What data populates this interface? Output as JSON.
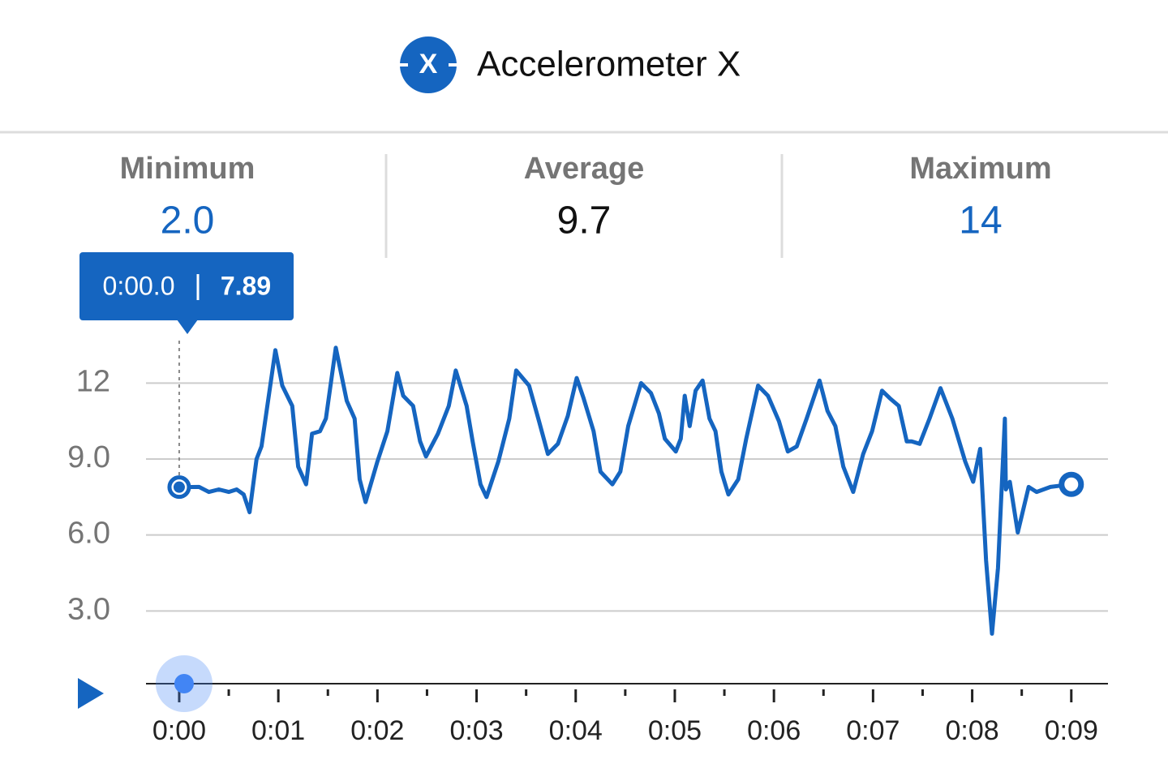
{
  "header": {
    "icon_label": "X",
    "title": "Accelerometer X"
  },
  "stats": [
    {
      "label": "Minimum",
      "value": "2.0"
    },
    {
      "label": "Average",
      "value": "9.7"
    },
    {
      "label": "Maximum",
      "value": "14"
    }
  ],
  "tooltip": {
    "time": "0:00.0",
    "value": "7.89"
  },
  "chart_data": {
    "type": "line",
    "color": "#1565c0",
    "x": [
      0,
      0.2,
      0.3,
      0.4,
      0.5,
      0.58,
      0.65,
      0.71,
      0.78,
      0.83,
      0.97,
      1.04,
      1.14,
      1.2,
      1.28,
      1.34,
      1.42,
      1.48,
      1.58,
      1.69,
      1.77,
      1.82,
      1.88,
      2.0,
      2.1,
      2.2,
      2.26,
      2.36,
      2.43,
      2.49,
      2.61,
      2.72,
      2.79,
      2.9,
      2.96,
      3.04,
      3.1,
      3.22,
      3.33,
      3.4,
      3.53,
      3.63,
      3.72,
      3.82,
      3.92,
      4.01,
      4.08,
      4.18,
      4.25,
      4.37,
      4.45,
      4.53,
      4.66,
      4.76,
      4.84,
      4.9,
      5.01,
      5.06,
      5.1,
      5.15,
      5.21,
      5.28,
      5.35,
      5.41,
      5.47,
      5.54,
      5.64,
      5.72,
      5.84,
      5.94,
      6.05,
      6.14,
      6.23,
      6.33,
      6.46,
      6.54,
      6.62,
      6.7,
      6.8,
      6.9,
      6.99,
      7.09,
      7.17,
      7.26,
      7.34,
      7.39,
      7.47,
      7.57,
      7.68,
      7.8,
      7.93,
      8.01,
      8.08,
      8.14,
      8.2,
      8.26,
      8.33,
      8.34,
      8.38,
      8.46,
      8.57,
      8.65,
      8.79,
      9.0
    ],
    "values": [
      7.89,
      7.9,
      7.7,
      7.8,
      7.7,
      7.8,
      7.6,
      6.9,
      9.0,
      9.5,
      13.3,
      11.9,
      11.1,
      8.7,
      8.0,
      10.0,
      10.1,
      10.6,
      13.4,
      11.3,
      10.6,
      8.2,
      7.3,
      8.9,
      10.1,
      12.4,
      11.5,
      11.1,
      9.7,
      9.1,
      10.0,
      11.1,
      12.5,
      11.1,
      9.7,
      8.0,
      7.5,
      8.9,
      10.6,
      12.5,
      11.9,
      10.5,
      9.2,
      9.6,
      10.7,
      12.2,
      11.4,
      10.1,
      8.5,
      8.0,
      8.5,
      10.3,
      12.0,
      11.6,
      10.8,
      9.8,
      9.3,
      9.8,
      11.5,
      10.3,
      11.7,
      12.1,
      10.6,
      10.1,
      8.5,
      7.6,
      8.2,
      9.8,
      11.9,
      11.5,
      10.5,
      9.3,
      9.5,
      10.6,
      12.1,
      10.9,
      10.3,
      8.7,
      7.7,
      9.2,
      10.1,
      11.7,
      11.4,
      11.1,
      9.7,
      9.7,
      9.6,
      10.6,
      11.8,
      10.6,
      8.9,
      8.1,
      9.4,
      5.0,
      2.1,
      4.7,
      10.6,
      7.8,
      8.1,
      6.1,
      7.9,
      7.7,
      7.9,
      8.0
    ],
    "xlim": [
      -0.335,
      9.37
    ],
    "xticks": [
      {
        "value": 0,
        "label": "0:00"
      },
      {
        "value": 1,
        "label": "0:01"
      },
      {
        "value": 2,
        "label": "0:02"
      },
      {
        "value": 3,
        "label": "0:03"
      },
      {
        "value": 4,
        "label": "0:04"
      },
      {
        "value": 5,
        "label": "0:05"
      },
      {
        "value": 6,
        "label": "0:06"
      },
      {
        "value": 7,
        "label": "0:07"
      },
      {
        "value": 8,
        "label": "0:08"
      },
      {
        "value": 9,
        "label": "0:09"
      }
    ],
    "xminorticks": [
      0.5,
      1.5,
      2.5,
      3.5,
      4.5,
      5.5,
      6.5,
      7.5,
      8.5
    ],
    "ylim": [
      0,
      14.5
    ],
    "yticks": [
      {
        "value": 3,
        "label": "3.0"
      },
      {
        "value": 6,
        "label": "6.0"
      },
      {
        "value": 9,
        "label": "9.0"
      },
      12
    ],
    "grid": true
  }
}
